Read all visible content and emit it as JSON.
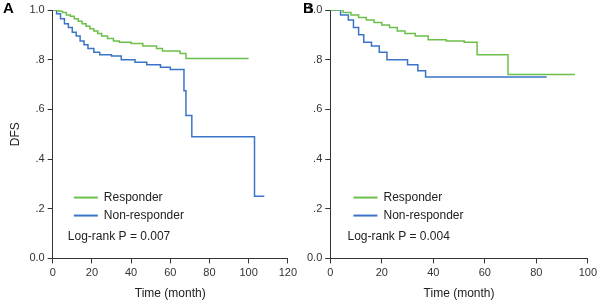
{
  "chart_data": [
    {
      "type": "line",
      "title": "A",
      "y_label": "DFS",
      "x_label": "Time (month)",
      "xlim": [
        0,
        120
      ],
      "xticks": [
        0,
        20,
        40,
        60,
        80,
        100,
        120
      ],
      "ylim": [
        0,
        1
      ],
      "yticks": [
        {
          "value": 0,
          "label": "0.0"
        },
        {
          "value": 0.2,
          "label": ".2"
        },
        {
          "value": 0.4,
          "label": ".4"
        },
        {
          "value": 0.6,
          "label": ".6"
        },
        {
          "value": 0.8,
          "label": ".8"
        },
        {
          "value": 1,
          "label": "1.0"
        }
      ],
      "grid": false,
      "legend": "lower left",
      "annotation": "Log-rank P = 0.007",
      "series": [
        {
          "name": "Responder",
          "color": "#6cc04a",
          "line_style": "step",
          "x": [
            0,
            3,
            5,
            7,
            9,
            11,
            13,
            15,
            17,
            19,
            21,
            23,
            25,
            28,
            31,
            34,
            40,
            46,
            53,
            56,
            65,
            68,
            100
          ],
          "values": [
            1,
            0.995,
            0.99,
            0.98,
            0.975,
            0.965,
            0.955,
            0.945,
            0.935,
            0.925,
            0.915,
            0.905,
            0.895,
            0.885,
            0.875,
            0.87,
            0.865,
            0.855,
            0.845,
            0.835,
            0.825,
            0.805,
            0.805
          ]
        },
        {
          "name": "Non-responder",
          "color": "#3a74c9",
          "line_style": "step",
          "x": [
            0,
            2,
            4,
            6,
            8,
            10,
            12,
            14,
            16,
            18,
            21,
            24,
            30,
            35,
            42,
            48,
            55,
            60,
            67,
            68,
            71,
            103,
            108
          ],
          "values": [
            1,
            0.985,
            0.965,
            0.945,
            0.93,
            0.91,
            0.895,
            0.875,
            0.86,
            0.845,
            0.83,
            0.82,
            0.815,
            0.8,
            0.79,
            0.78,
            0.77,
            0.76,
            0.675,
            0.575,
            0.49,
            0.25,
            0.25
          ]
        }
      ]
    },
    {
      "type": "line",
      "title": "B",
      "x_label": "Time (month)",
      "xlim": [
        0,
        100
      ],
      "xticks": [
        0,
        20,
        40,
        60,
        80,
        100
      ],
      "ylim": [
        0,
        1
      ],
      "yticks": [
        {
          "value": 0,
          "label": "0.0"
        },
        {
          "value": 0.2,
          "label": ".2"
        },
        {
          "value": 0.4,
          "label": ".4"
        },
        {
          "value": 0.6,
          "label": ".6"
        },
        {
          "value": 0.8,
          "label": ".8"
        },
        {
          "value": 1,
          "label": "1.0"
        }
      ],
      "grid": false,
      "legend": "lower left",
      "annotation": "Log-rank P = 0.004",
      "series": [
        {
          "name": "Responder",
          "color": "#6cc04a",
          "line_style": "step",
          "x": [
            0,
            5,
            8,
            11,
            14,
            17,
            20,
            23,
            26,
            29,
            33,
            38,
            45,
            52,
            57,
            69,
            95
          ],
          "values": [
            1,
            0.99,
            0.98,
            0.97,
            0.96,
            0.95,
            0.94,
            0.93,
            0.915,
            0.905,
            0.895,
            0.88,
            0.875,
            0.87,
            0.82,
            0.74,
            0.74
          ]
        },
        {
          "name": "Non-responder",
          "color": "#3a74c9",
          "line_style": "step",
          "x": [
            0,
            4,
            7,
            9,
            11,
            13,
            16,
            19,
            22,
            27,
            30,
            34,
            37,
            84
          ],
          "values": [
            1,
            0.98,
            0.96,
            0.93,
            0.9,
            0.87,
            0.855,
            0.83,
            0.8,
            0.8,
            0.78,
            0.755,
            0.73,
            0.73
          ]
        }
      ]
    }
  ]
}
